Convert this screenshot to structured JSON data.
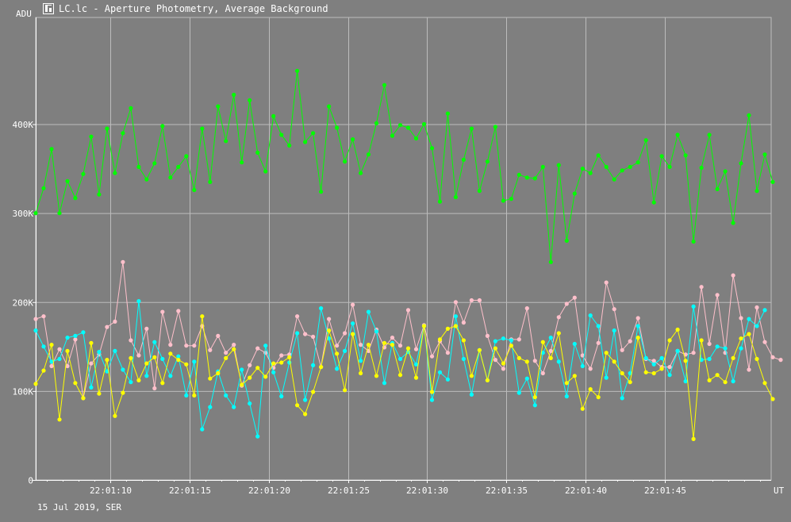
{
  "window": {
    "title": "LC.lc - Aperture Photometry, Average Background"
  },
  "footer": {
    "date_observer": "15 Jul 2019, SER"
  },
  "chart_data": {
    "type": "line",
    "title": "",
    "xlabel": "UT",
    "ylabel": "ADU",
    "xlim": [
      "22:01:05.3",
      "22:01:51.7"
    ],
    "ylim": [
      0,
      520000
    ],
    "grid": true,
    "legend": "none",
    "x_ticks": [
      "22:01:10",
      "22:01:15",
      "22:01:20",
      "22:01:25",
      "22:01:30",
      "22:01:35",
      "22:01:40",
      "22:01:45"
    ],
    "y_ticks": [
      {
        "value": 0,
        "label": "0"
      },
      {
        "value": 100000,
        "label": "100K"
      },
      {
        "value": 200000,
        "label": "200K"
      },
      {
        "value": 300000,
        "label": "300K"
      },
      {
        "value": 400000,
        "label": "400K"
      }
    ],
    "x_start": "22:01:05.3",
    "x_step_s": 0.5,
    "colors": {
      "background": "#7f7f7f",
      "grid": "#bcbcbc",
      "axis": "#ffffff"
    },
    "series": [
      {
        "color": "#00ff00",
        "values": [
          300000,
          328000,
          372000,
          300000,
          336000,
          317000,
          344000,
          386000,
          321000,
          395000,
          345000,
          390000,
          418000,
          352000,
          338000,
          356000,
          398000,
          340000,
          352000,
          364000,
          326000,
          395000,
          335000,
          420000,
          381000,
          433000,
          357000,
          427000,
          368000,
          347000,
          409000,
          388000,
          376000,
          460000,
          380000,
          390000,
          324000,
          420000,
          396000,
          358000,
          383000,
          345000,
          366000,
          401000,
          444000,
          387000,
          399000,
          396000,
          384000,
          400000,
          373000,
          313000,
          412000,
          318000,
          360000,
          395000,
          325000,
          358000,
          397000,
          314000,
          316000,
          343000,
          340000,
          339000,
          352000,
          245000,
          354000,
          269000,
          322000,
          350000,
          345000,
          365000,
          352000,
          338000,
          348000,
          352000,
          357000,
          382000,
          312000,
          364000,
          352000,
          388000,
          365000,
          268000,
          351000,
          388000,
          327000,
          347000,
          289000,
          356000,
          410000,
          325000,
          366000,
          335000
        ]
      },
      {
        "color": "#ffc0cb",
        "values": [
          181000,
          184000,
          128000,
          147000,
          128000,
          158000,
          92000,
          131000,
          141000,
          172000,
          178000,
          245000,
          157000,
          140000,
          170000,
          103000,
          189000,
          152000,
          190000,
          151000,
          151000,
          173000,
          146000,
          162000,
          143000,
          152000,
          106000,
          129000,
          148000,
          143000,
          126000,
          140000,
          141000,
          184000,
          164000,
          161000,
          127000,
          181000,
          151000,
          165000,
          197000,
          152000,
          145000,
          169000,
          149000,
          160000,
          151000,
          191000,
          147000,
          174000,
          139000,
          156000,
          143000,
          200000,
          177000,
          202000,
          202000,
          162000,
          135000,
          125000,
          158000,
          158000,
          193000,
          134000,
          120000,
          145000,
          183000,
          198000,
          205000,
          140000,
          125000,
          154000,
          222000,
          192000,
          146000,
          156000,
          182000,
          136000,
          134000,
          127000,
          127000,
          145000,
          141000,
          143000,
          217000,
          153000,
          208000,
          143000,
          230000,
          182000,
          124000,
          194000,
          155000,
          138000,
          135000
        ]
      },
      {
        "color": "#00ffff",
        "values": [
          168000,
          150000,
          133000,
          136000,
          160000,
          162000,
          166000,
          104000,
          144000,
          122000,
          145000,
          124000,
          110000,
          201000,
          117000,
          155000,
          136000,
          117000,
          139000,
          95000,
          133000,
          57000,
          82000,
          122000,
          95000,
          82000,
          124000,
          86000,
          49000,
          151000,
          121000,
          94000,
          132000,
          165000,
          90000,
          129000,
          193000,
          159000,
          125000,
          145000,
          176000,
          134000,
          189000,
          167000,
          109000,
          154000,
          136000,
          144000,
          130000,
          173000,
          90000,
          121000,
          113000,
          184000,
          136000,
          96000,
          146000,
          112000,
          156000,
          159000,
          157000,
          98000,
          114000,
          84000,
          143000,
          160000,
          133000,
          94000,
          153000,
          128000,
          185000,
          173000,
          115000,
          168000,
          92000,
          120000,
          173000,
          137000,
          130000,
          137000,
          118000,
          145000,
          111000,
          195000,
          135000,
          136000,
          150000,
          148000,
          111000,
          148000,
          181000,
          173000,
          191000
        ]
      },
      {
        "color": "#ffff00",
        "values": [
          108000,
          123000,
          152000,
          68000,
          145000,
          109000,
          92000,
          154000,
          97000,
          135000,
          72000,
          98000,
          137000,
          112000,
          131000,
          138000,
          109000,
          142000,
          135000,
          130000,
          95000,
          184000,
          114000,
          120000,
          137000,
          147000,
          107000,
          115000,
          126000,
          116000,
          131000,
          132000,
          138000,
          84000,
          74000,
          99000,
          127000,
          168000,
          142000,
          101000,
          164000,
          120000,
          152000,
          117000,
          154000,
          152000,
          118000,
          148000,
          115000,
          173000,
          99000,
          158000,
          170000,
          173000,
          157000,
          117000,
          146000,
          112000,
          148000,
          131000,
          151000,
          137000,
          133000,
          93000,
          155000,
          137000,
          165000,
          109000,
          117000,
          80000,
          102000,
          93000,
          143000,
          133000,
          120000,
          110000,
          160000,
          121000,
          120000,
          125000,
          157000,
          169000,
          134000,
          46000,
          157000,
          112000,
          118000,
          110000,
          137000,
          159000,
          164000,
          136000,
          109000,
          91000
        ]
      }
    ]
  }
}
